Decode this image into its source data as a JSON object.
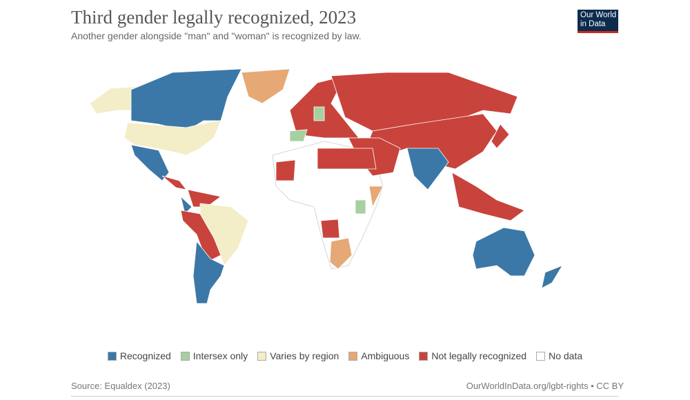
{
  "header": {
    "title": "Third gender legally recognized, 2023",
    "subtitle": "Another gender alongside \"man\" and \"woman\" is recognized by law.",
    "logo": [
      "Our World",
      "in Data"
    ]
  },
  "legend": [
    {
      "label": "Recognized",
      "color": "#3b78a8"
    },
    {
      "label": "Intersex only",
      "color": "#a8cfa0"
    },
    {
      "label": "Varies by region",
      "color": "#f3edc8"
    },
    {
      "label": "Ambiguous",
      "color": "#e6a874"
    },
    {
      "label": "Not legally recognized",
      "color": "#c8433c"
    },
    {
      "label": "No data",
      "color": "#ffffff"
    }
  ],
  "footer": {
    "source": "Source: Equaldex (2023)",
    "link": "OurWorldInData.org/lgbt-rights • CC BY"
  }
}
